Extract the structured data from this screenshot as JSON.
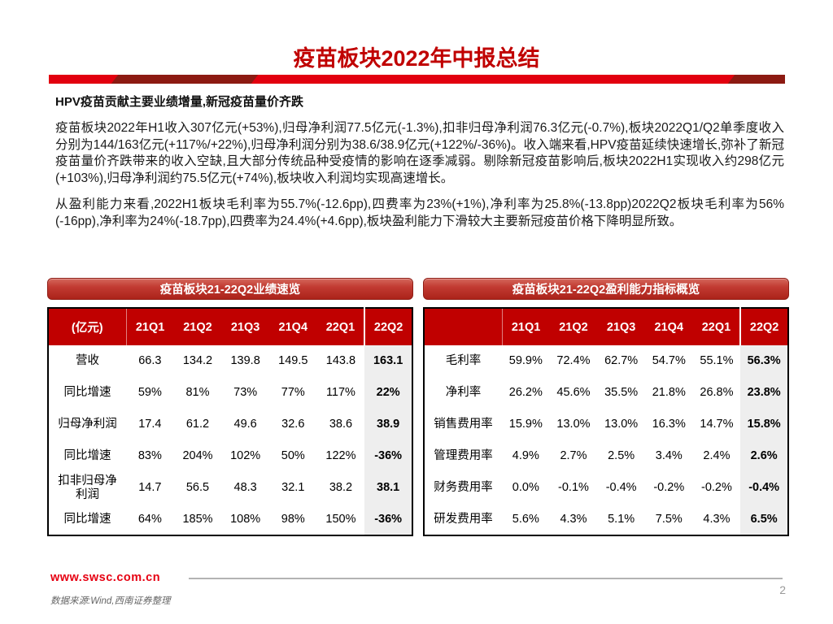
{
  "page": {
    "title": "疫苗板块2022年中报总结"
  },
  "content": {
    "heading": "HPV疫苗贡献主要业绩增量,新冠疫苗量价齐跌",
    "paragraph1": "疫苗板块2022年H1收入307亿元(+53%),归母净利润77.5亿元(-1.3%),扣非归母净利润76.3亿元(-0.7%),板块2022Q1/Q2单季度收入分别为144/163亿元(+117%/+22%),归母净利润分别为38.6/38.9亿元(+122%/-36%)。收入端来看,HPV疫苗延续快速增长,弥补了新冠疫苗量价齐跌带来的收入空缺,且大部分传统品种受疫情的影响在逐季减弱。剔除新冠疫苗影响后,板块2022H1实现收入约298亿元(+103%),归母净利润约75.5亿元(+74%),板块收入利润均实现高速增长。",
    "paragraph2": "从盈利能力来看,2022H1板块毛利率为55.7%(-12.6pp),四费率为23%(+1%),净利率为25.8%(-13.8pp)2022Q2板块毛利率为56%(-16pp),净利率为24%(-18.7pp),四费率为24.4%(+4.6pp),板块盈利能力下滑较大主要新冠疫苗价格下降明显所致。"
  },
  "tables": [
    {
      "title": "疫苗板块21-22Q2业绩速览",
      "unit_label": "(亿元)",
      "columns": [
        "21Q1",
        "21Q2",
        "21Q3",
        "21Q4",
        "22Q1",
        "22Q2"
      ],
      "rows": [
        {
          "label": "营收",
          "values": [
            "66.3",
            "134.2",
            "139.8",
            "149.5",
            "143.8",
            "163.1"
          ]
        },
        {
          "label": "同比增速",
          "values": [
            "59%",
            "81%",
            "73%",
            "77%",
            "117%",
            "22%"
          ]
        },
        {
          "label": "归母净利润",
          "values": [
            "17.4",
            "61.2",
            "49.6",
            "32.6",
            "38.6",
            "38.9"
          ]
        },
        {
          "label": "同比增速",
          "values": [
            "83%",
            "204%",
            "102%",
            "50%",
            "122%",
            "-36%"
          ]
        },
        {
          "label": "扣非归母净利润",
          "values": [
            "14.7",
            "56.5",
            "48.3",
            "32.1",
            "38.2",
            "38.1"
          ]
        },
        {
          "label": "同比增速",
          "values": [
            "64%",
            "185%",
            "108%",
            "98%",
            "150%",
            "-36%"
          ]
        }
      ]
    },
    {
      "title": "疫苗板块21-22Q2盈利能力指标概览",
      "unit_label": "",
      "columns": [
        "21Q1",
        "21Q2",
        "21Q3",
        "21Q4",
        "22Q1",
        "22Q2"
      ],
      "rows": [
        {
          "label": "毛利率",
          "values": [
            "59.9%",
            "72.4%",
            "62.7%",
            "54.7%",
            "55.1%",
            "56.3%"
          ]
        },
        {
          "label": "净利率",
          "values": [
            "26.2%",
            "45.6%",
            "35.5%",
            "21.8%",
            "26.8%",
            "23.8%"
          ]
        },
        {
          "label": "销售费用率",
          "values": [
            "15.9%",
            "13.0%",
            "13.0%",
            "16.3%",
            "14.7%",
            "15.8%"
          ]
        },
        {
          "label": "管理费用率",
          "values": [
            "4.9%",
            "2.7%",
            "2.5%",
            "3.4%",
            "2.4%",
            "2.6%"
          ]
        },
        {
          "label": "财务费用率",
          "values": [
            "0.0%",
            "-0.1%",
            "-0.4%",
            "-0.2%",
            "-0.2%",
            "-0.4%"
          ]
        },
        {
          "label": "研发费用率",
          "values": [
            "5.6%",
            "4.3%",
            "5.1%",
            "7.5%",
            "4.3%",
            "6.5%"
          ]
        }
      ]
    }
  ],
  "footer": {
    "website": "www.swsc.com.cn",
    "source": "数据来源:Wind,西南证券整理",
    "page_number": "2"
  },
  "colors": {
    "title_red": "#c00000",
    "bar_red": "#e2000f",
    "bar_dark_red": "#8c1a12",
    "table_header_red": "#c00000",
    "highlight_column_bg": "#eeeeee",
    "footer_red": "#e60012"
  }
}
